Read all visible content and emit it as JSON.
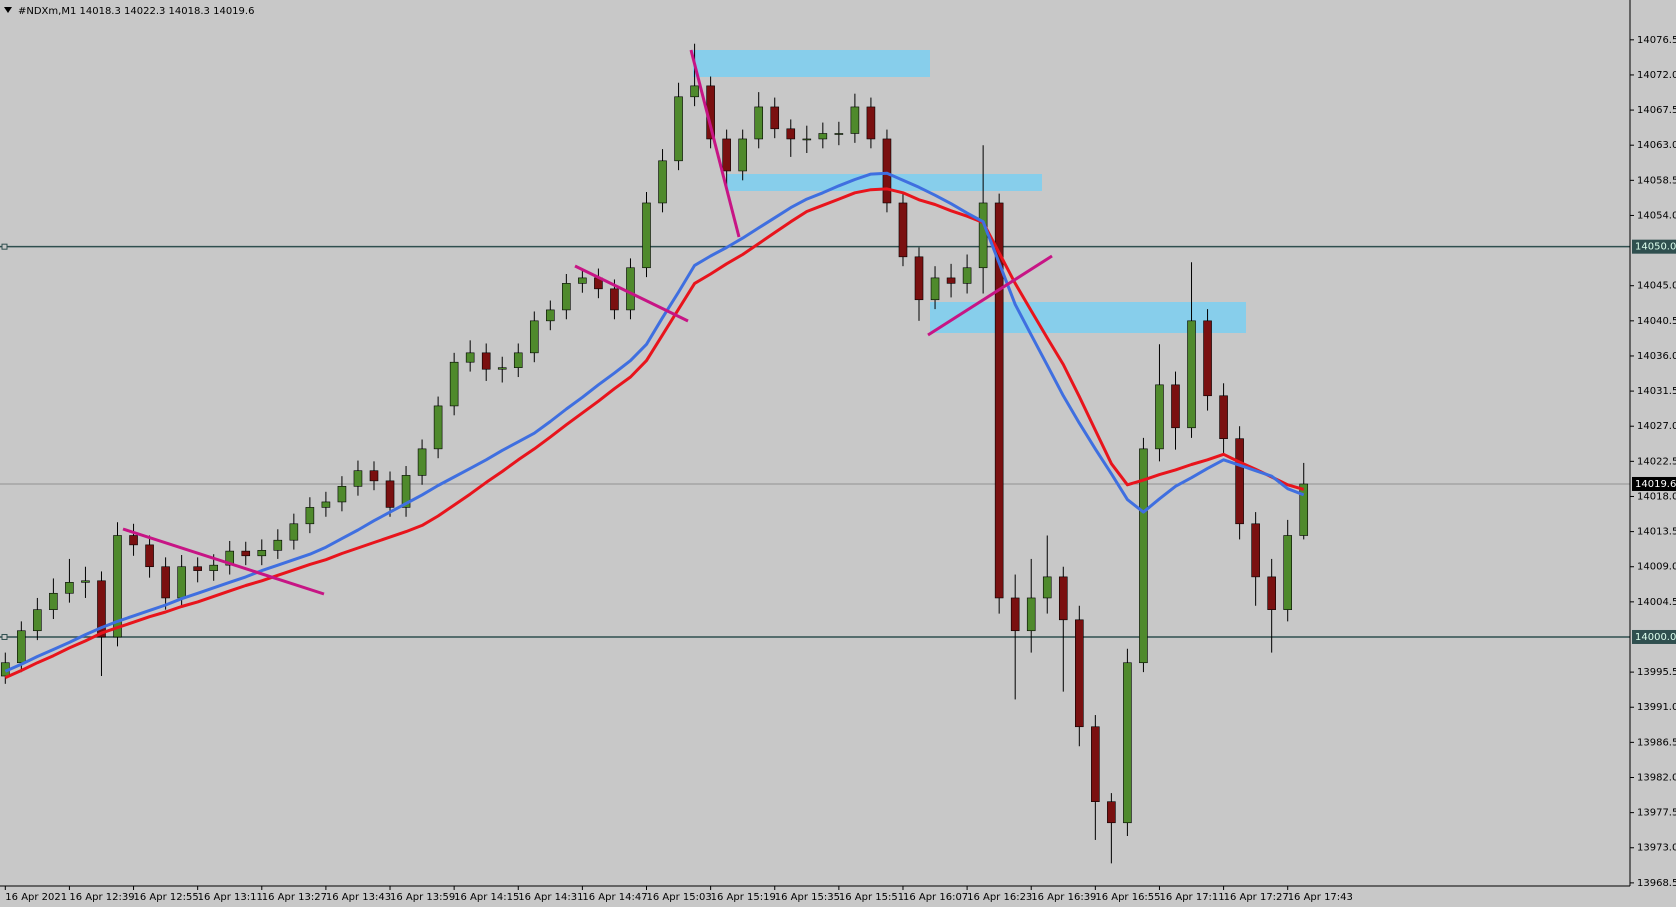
{
  "chart_data": {
    "type": "candlestick",
    "title": "#NDXm,M1  14018.3 14022.3 14018.3 14019.6",
    "categories": [
      "16 Apr 2021",
      null,
      null,
      null,
      "16 Apr 12:39",
      null,
      null,
      null,
      "16 Apr 12:55",
      null,
      null,
      null,
      "16 Apr 13:11",
      null,
      null,
      null,
      "16 Apr 13:27",
      null,
      null,
      null,
      "16 Apr 13:43",
      null,
      null,
      null,
      "16 Apr 13:59",
      null,
      null,
      null,
      "16 Apr 14:15",
      null,
      null,
      null,
      "16 Apr 14:31",
      null,
      null,
      null,
      "16 Apr 14:47",
      null,
      null,
      null,
      "16 Apr 15:03",
      null,
      null,
      null,
      "16 Apr 15:19",
      null,
      null,
      null,
      "16 Apr 15:35",
      null,
      null,
      null,
      "16 Apr 15:51",
      null,
      null,
      null,
      "16 Apr 16:07",
      null,
      null,
      null,
      "16 Apr 16:23",
      null,
      null,
      null,
      "16 Apr 16:39",
      null,
      null,
      null,
      "16 Apr 16:55",
      null,
      null,
      null,
      "16 Apr 17:11",
      null,
      null,
      null,
      "16 Apr 17:27",
      null,
      null,
      null,
      "16 Apr 17:43",
      null
    ],
    "open": [
      13995.0,
      13996.7,
      14000.8,
      14003.5,
      14005.6,
      14007.0,
      14007.2,
      14000.0,
      14013.0,
      14011.8,
      14009.0,
      14005.0,
      14009.0,
      14008.5,
      14009.2,
      14011.0,
      14010.4,
      14011.1,
      14012.4,
      14014.5,
      14016.6,
      14017.3,
      14019.3,
      14021.3,
      14020.0,
      14016.6,
      14020.7,
      14024.1,
      14029.6,
      14035.2,
      14036.4,
      14034.3,
      14034.5,
      14036.4,
      14040.5,
      14041.9,
      14045.3,
      14046.0,
      14044.6,
      14041.9,
      14047.3,
      14055.6,
      14061.0,
      14069.2,
      14070.6,
      14063.8,
      14059.7,
      14063.8,
      14067.9,
      14065.1,
      14063.8,
      14063.8,
      14064.5,
      14064.5,
      14067.9,
      14063.8,
      14055.6,
      14048.7,
      14043.2,
      14046.0,
      14045.3,
      14047.3,
      14055.6,
      14005.0,
      14000.8,
      14005.0,
      14007.7,
      14002.2,
      13988.5,
      13978.9,
      13976.2,
      13996.7,
      14024.1,
      14032.3,
      14026.8,
      14040.5,
      14030.9,
      14025.4,
      14014.5,
      14007.7,
      14003.5,
      14013.0
    ],
    "high": [
      13998.0,
      14002.0,
      14005.0,
      14007.5,
      14010.0,
      14009.0,
      14008.4,
      14014.7,
      14014.5,
      14013.0,
      14010.2,
      14010.5,
      14010.2,
      14010.6,
      14012.3,
      14012.2,
      14012.5,
      14013.8,
      14015.8,
      14017.9,
      14018.6,
      14020.6,
      14022.6,
      14022.5,
      14021.2,
      14021.9,
      14025.3,
      14030.8,
      14036.4,
      14038.0,
      14037.6,
      14035.9,
      14037.6,
      14041.7,
      14043.1,
      14046.5,
      14047.2,
      14047.2,
      14045.8,
      14048.5,
      14057.0,
      14062.5,
      14071.0,
      14076.0,
      14071.8,
      14065.0,
      14065.0,
      14069.8,
      14069.1,
      14066.3,
      14065.5,
      14065.9,
      14066.0,
      14069.6,
      14069.1,
      14065.0,
      14056.8,
      14049.9,
      14047.5,
      14047.8,
      14049.0,
      14063.0,
      14056.8,
      14008.0,
      14010.0,
      14013.0,
      14009.0,
      14004.0,
      13990.0,
      13980.0,
      13998.5,
      14025.5,
      14037.5,
      14034.0,
      14048.0,
      14042.0,
      14032.5,
      14027.0,
      14016.0,
      14010.0,
      14015.0,
      14022.3
    ],
    "low": [
      13994.0,
      13995.5,
      13999.6,
      14002.3,
      14004.4,
      14005.0,
      13995.0,
      13998.8,
      14010.4,
      14007.6,
      14003.5,
      14003.8,
      14007.0,
      14007.2,
      14008.0,
      14009.2,
      14009.2,
      14010.0,
      14011.2,
      14013.3,
      14015.4,
      14016.1,
      14018.1,
      14018.8,
      14015.4,
      14015.4,
      14019.5,
      14022.9,
      14028.4,
      14034.0,
      14032.8,
      14032.6,
      14033.3,
      14035.2,
      14039.3,
      14040.7,
      14044.1,
      14043.4,
      14040.7,
      14040.7,
      14046.1,
      14054.4,
      14059.8,
      14068.0,
      14062.6,
      14057.5,
      14058.5,
      14062.6,
      14063.9,
      14061.5,
      14062.0,
      14062.6,
      14063.0,
      14063.3,
      14062.6,
      14054.4,
      14047.5,
      14040.5,
      14042.0,
      14043.5,
      14044.0,
      14044.0,
      14003.0,
      13992.0,
      13998.0,
      14003.0,
      13993.0,
      13986.0,
      13974.0,
      13971.0,
      13974.5,
      13995.5,
      14022.5,
      14024.0,
      14025.5,
      14029.0,
      14023.5,
      14012.5,
      14004.0,
      13998.0,
      14002.0,
      14012.5
    ],
    "close": [
      13996.7,
      14000.8,
      14003.5,
      14005.6,
      14007.0,
      14007.2,
      14000.0,
      14013.0,
      14011.8,
      14009.0,
      14005.0,
      14009.0,
      14008.5,
      14009.2,
      14011.0,
      14010.4,
      14011.1,
      14012.4,
      14014.5,
      14016.6,
      14017.3,
      14019.3,
      14021.3,
      14020.0,
      14016.6,
      14020.7,
      14024.1,
      14029.6,
      14035.2,
      14036.4,
      14034.3,
      14034.5,
      14036.4,
      14040.5,
      14041.9,
      14045.3,
      14046.0,
      14044.6,
      14041.9,
      14047.3,
      14055.6,
      14061.0,
      14069.2,
      14070.6,
      14063.8,
      14059.7,
      14063.8,
      14067.9,
      14065.1,
      14063.8,
      14063.8,
      14064.5,
      14064.5,
      14067.9,
      14063.8,
      14055.6,
      14048.7,
      14043.2,
      14046.0,
      14045.3,
      14047.3,
      14055.6,
      14005.0,
      14000.8,
      14005.0,
      14007.7,
      14002.2,
      13988.5,
      13978.9,
      13976.2,
      13996.7,
      14024.1,
      14032.3,
      14026.8,
      14040.5,
      14030.9,
      14025.4,
      14014.5,
      14007.7,
      14003.5,
      14013.0,
      14019.6
    ],
    "up_color": "#4f8a2c",
    "down_color": "#7a1010",
    "moving_averages": [
      {
        "color": "#e8141c",
        "values": [
          13994.8,
          13995.7,
          13996.7,
          13997.6,
          13998.6,
          13999.5,
          14000.5,
          14001.2,
          14001.9,
          14002.6,
          14003.2,
          14003.9,
          14004.5,
          14005.2,
          14005.9,
          14006.6,
          14007.2,
          14007.9,
          14008.6,
          14009.3,
          14009.9,
          14010.7,
          14011.4,
          14012.1,
          14012.8,
          14013.5,
          14014.3,
          14015.5,
          14016.9,
          14018.3,
          14019.8,
          14021.2,
          14022.7,
          14024.1,
          14025.6,
          14027.2,
          14028.7,
          14030.2,
          14031.8,
          14033.3,
          14035.4,
          14038.7,
          14042.0,
          14045.3,
          14046.5,
          14047.8,
          14049.0,
          14050.4,
          14051.8,
          14053.2,
          14054.5,
          14055.3,
          14056.1,
          14056.9,
          14057.3,
          14057.4,
          14056.9,
          14056.0,
          14055.4,
          14054.6,
          14053.9,
          14053.1,
          14049.2,
          14045.3,
          14041.8,
          14038.3,
          14034.9,
          14030.8,
          14026.5,
          14022.2,
          14019.5,
          14020.1,
          14020.8,
          14021.4,
          14022.1,
          14022.7,
          14023.4,
          14022.4,
          14021.5,
          14020.5,
          14019.5,
          14018.9
        ]
      },
      {
        "color": "#3f6fe0",
        "values": [
          13995.6,
          13996.5,
          13997.5,
          13998.4,
          13999.3,
          14000.3,
          14001.2,
          14002.0,
          14002.7,
          14003.4,
          14004.1,
          14004.9,
          14005.6,
          14006.3,
          14007.0,
          14007.7,
          14008.5,
          14009.2,
          14009.9,
          14010.6,
          14011.5,
          14012.6,
          14013.7,
          14014.9,
          14016.0,
          14017.1,
          14018.2,
          14019.4,
          14020.5,
          14021.6,
          14022.7,
          14023.9,
          14025.0,
          14026.1,
          14027.6,
          14029.2,
          14030.7,
          14032.3,
          14033.8,
          14035.4,
          14037.5,
          14040.9,
          14044.2,
          14047.6,
          14048.8,
          14049.9,
          14051.1,
          14052.4,
          14053.7,
          14055.0,
          14056.1,
          14056.9,
          14057.8,
          14058.6,
          14059.3,
          14059.4,
          14058.5,
          14057.6,
          14056.6,
          14055.5,
          14054.3,
          14053.2,
          14047.9,
          14042.6,
          14038.7,
          14034.8,
          14030.9,
          14027.4,
          14024.1,
          14020.9,
          14017.6,
          14016.0,
          14017.7,
          14019.3,
          14020.4,
          14021.6,
          14022.7,
          14022.0,
          14021.3,
          14020.6,
          14019.0,
          14018.2
        ]
      }
    ],
    "ylim": [
      13968.1,
      14081.6
    ],
    "yticks": [
      {
        "value": 14076.5,
        "label": "14076.5"
      },
      {
        "value": 14072.0,
        "label": "14072.0"
      },
      {
        "value": 14067.5,
        "label": "14067.5"
      },
      {
        "value": 14063.0,
        "label": "14063.0"
      },
      {
        "value": 14058.5,
        "label": "14058.5"
      },
      {
        "value": 14054.0,
        "label": "14054.0"
      },
      {
        "value": 14045.0,
        "label": "14045.0"
      },
      {
        "value": 14040.5,
        "label": "14040.5"
      },
      {
        "value": 14036.0,
        "label": "14036.0"
      },
      {
        "value": 14031.5,
        "label": "14031.5"
      },
      {
        "value": 14027.0,
        "label": "14027.0"
      },
      {
        "value": 14022.5,
        "label": "14022.5"
      },
      {
        "value": 14018.0,
        "label": "14018.0"
      },
      {
        "value": 14013.5,
        "label": "14013.5"
      },
      {
        "value": 14009.0,
        "label": "14009.0"
      },
      {
        "value": 14004.5,
        "label": "14004.5"
      },
      {
        "value": 13995.5,
        "label": "13995.5"
      },
      {
        "value": 13991.0,
        "label": "13991.0"
      },
      {
        "value": 13986.5,
        "label": "13986.5"
      },
      {
        "value": 13982.0,
        "label": "13982.0"
      },
      {
        "value": 13977.5,
        "label": "13977.5"
      },
      {
        "value": 13973.0,
        "label": "13973.0"
      },
      {
        "value": 13968.5,
        "label": "13968.5"
      }
    ],
    "levels": [
      {
        "value": 14050.0,
        "label": "14050.0"
      },
      {
        "value": 14000.0,
        "label": "14000.0"
      }
    ],
    "current_price": {
      "value": 14019.6,
      "label": "14019.6"
    },
    "grid": false
  }
}
